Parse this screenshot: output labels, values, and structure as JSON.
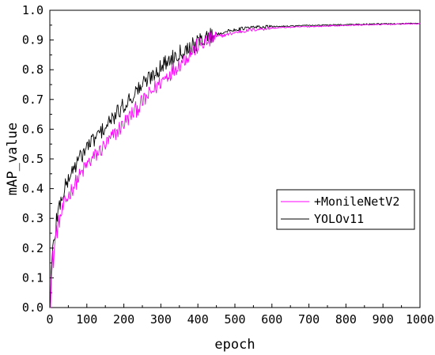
{
  "chart_data": {
    "type": "line",
    "title": "",
    "xlabel": "epoch",
    "ylabel": "mAP_value",
    "xlim": [
      0,
      1000
    ],
    "ylim": [
      0.0,
      1.0
    ],
    "xticks": [
      0,
      100,
      200,
      300,
      400,
      500,
      600,
      700,
      800,
      900,
      1000
    ],
    "yticks": [
      0.0,
      0.1,
      0.2,
      0.3,
      0.4,
      0.5,
      0.6,
      0.7,
      0.8,
      0.9,
      1.0
    ],
    "ytick_labels": [
      "0.0",
      "0.1",
      "0.2",
      "0.3",
      "0.4",
      "0.5",
      "0.6",
      "0.7",
      "0.8",
      "0.9",
      "1.0"
    ],
    "grid": false,
    "legend_position": "center-right",
    "series": [
      {
        "name": "+MonileNetV2",
        "color": "#ff00ff",
        "x": [
          0,
          3,
          8,
          15,
          25,
          40,
          60,
          80,
          100,
          130,
          160,
          200,
          250,
          300,
          350,
          400,
          450,
          500,
          550,
          600,
          650,
          700,
          750,
          800,
          850,
          900,
          950,
          1000
        ],
        "y": [
          0.0,
          0.07,
          0.15,
          0.23,
          0.29,
          0.35,
          0.4,
          0.44,
          0.48,
          0.52,
          0.56,
          0.62,
          0.69,
          0.76,
          0.82,
          0.88,
          0.91,
          0.925,
          0.935,
          0.94,
          0.943,
          0.945,
          0.947,
          0.949,
          0.951,
          0.952,
          0.954,
          0.955
        ]
      },
      {
        "name": "YOLOv11",
        "color": "#000000",
        "x": [
          0,
          3,
          8,
          15,
          25,
          40,
          60,
          80,
          100,
          130,
          160,
          200,
          250,
          300,
          350,
          400,
          420,
          450,
          500,
          550,
          600,
          650,
          700,
          750,
          800,
          850,
          900,
          950,
          1000
        ],
        "y": [
          0.0,
          0.09,
          0.18,
          0.27,
          0.34,
          0.4,
          0.46,
          0.5,
          0.54,
          0.58,
          0.62,
          0.68,
          0.75,
          0.81,
          0.86,
          0.89,
          0.91,
          0.92,
          0.935,
          0.943,
          0.945,
          0.947,
          0.949,
          0.95,
          0.952,
          0.953,
          0.954,
          0.955,
          0.956
        ]
      }
    ]
  }
}
